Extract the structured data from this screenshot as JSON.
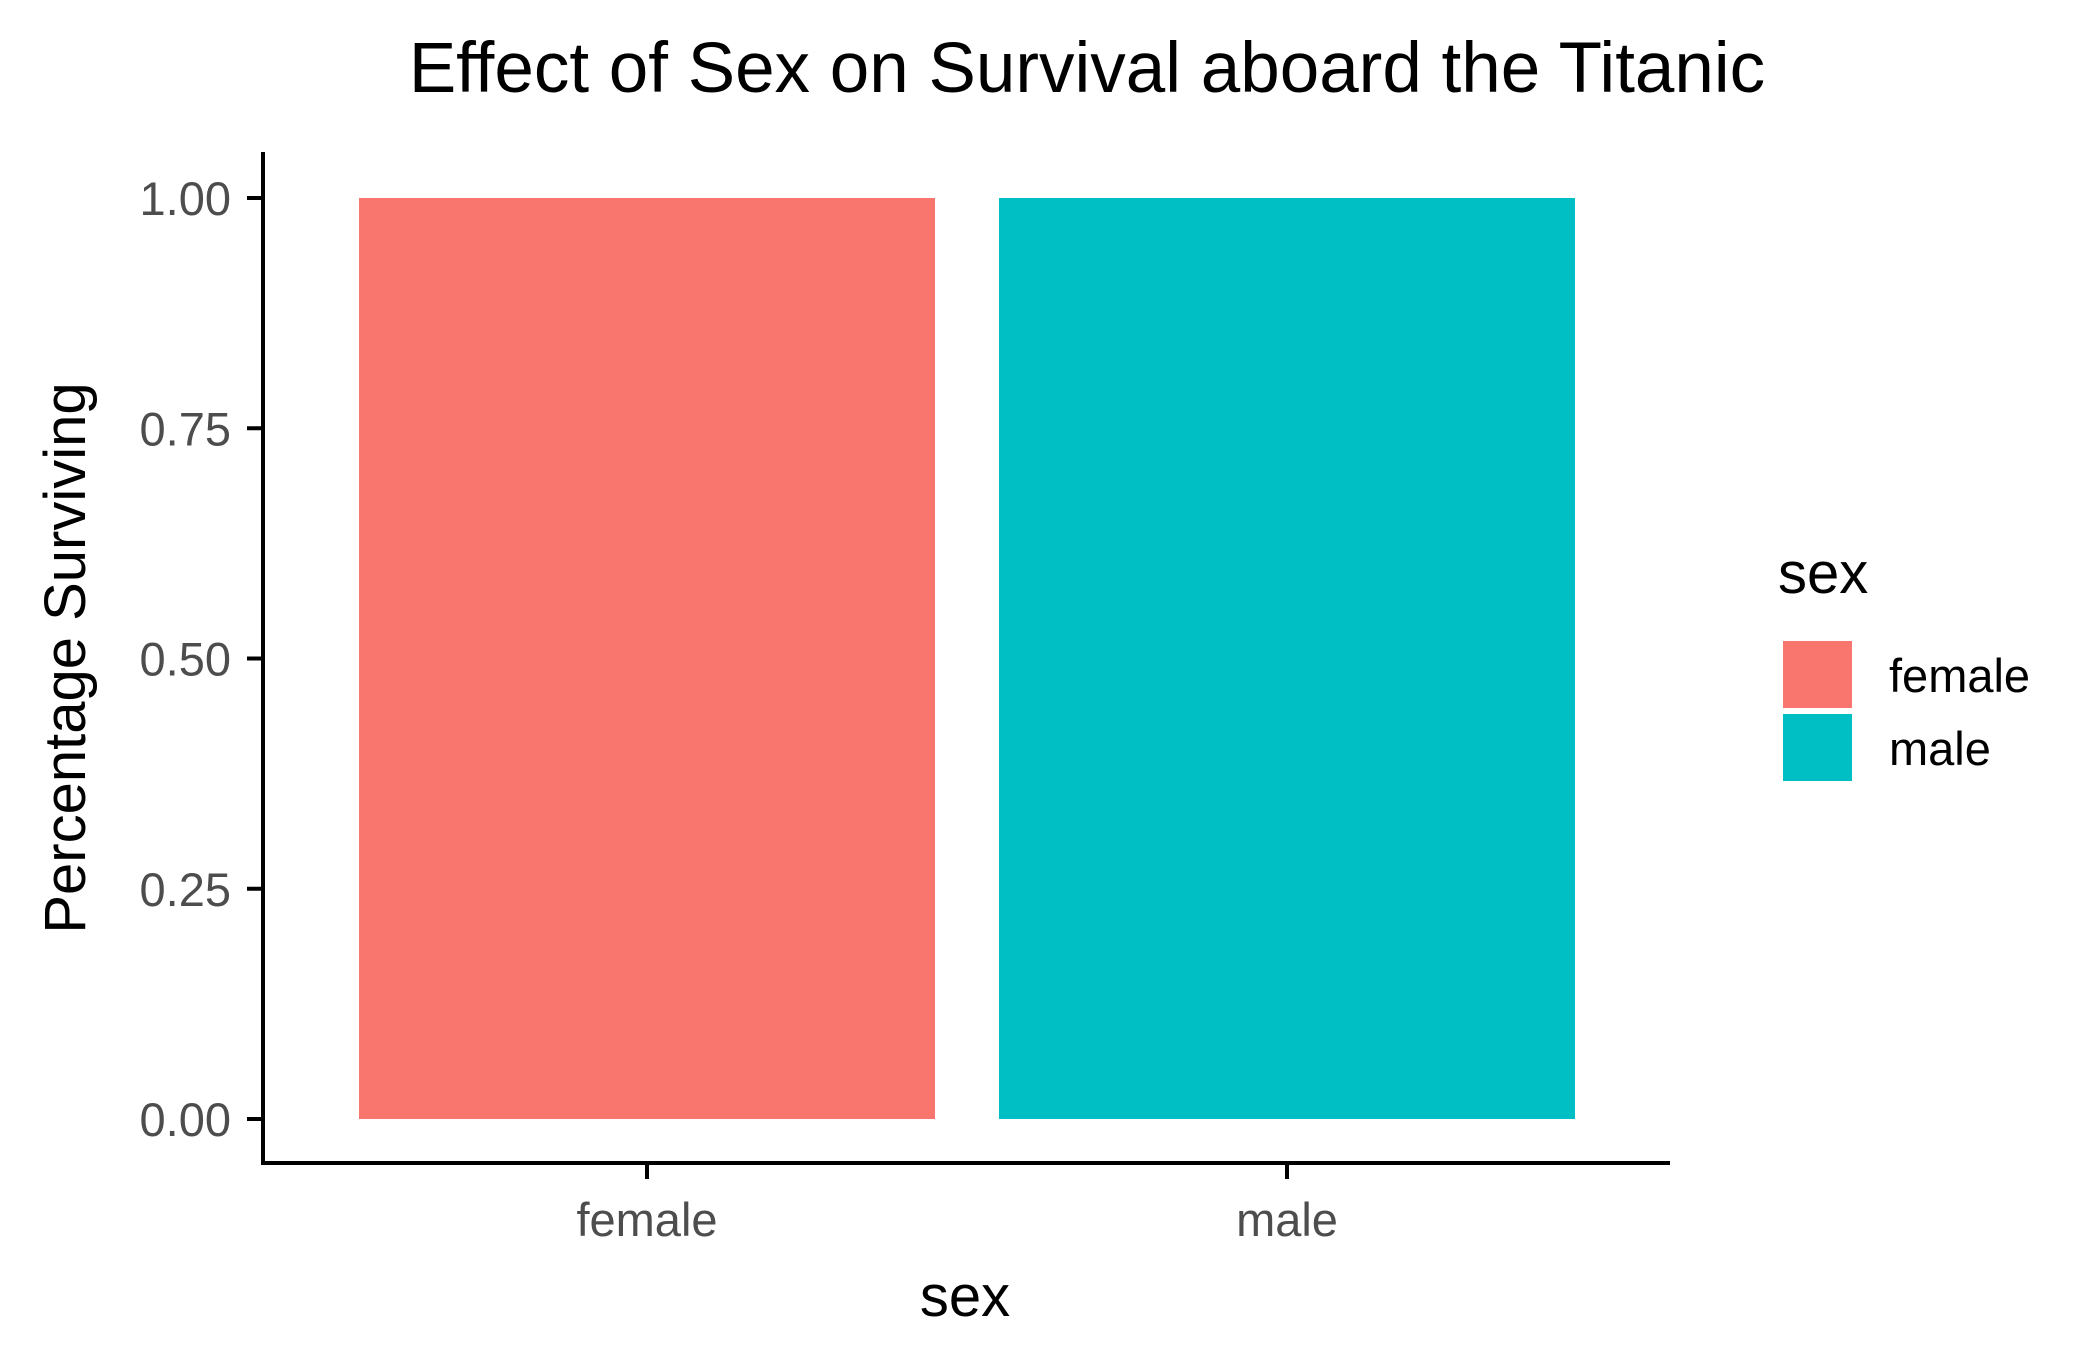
{
  "chart_data": {
    "type": "bar",
    "title": "Effect of Sex on Survival aboard the Titanic",
    "xlabel": "sex",
    "ylabel": "Percentage Surviving",
    "categories": [
      "female",
      "male"
    ],
    "values": [
      1.0,
      1.0
    ],
    "colors": [
      "#F8766D",
      "#00BFC4"
    ],
    "ylim": [
      0,
      1
    ],
    "yticks": [
      0.0,
      0.25,
      0.5,
      0.75,
      1.0
    ],
    "ytick_labels": [
      "0.00",
      "0.25",
      "0.50",
      "0.75",
      "1.00"
    ],
    "grid": false,
    "legend": {
      "title": "sex",
      "placement": "right",
      "entries": [
        {
          "label": "female",
          "color": "#F8766D"
        },
        {
          "label": "male",
          "color": "#00BFC4"
        }
      ]
    }
  }
}
